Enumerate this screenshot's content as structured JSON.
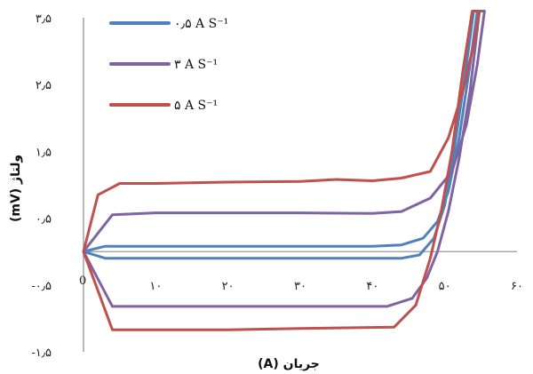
{
  "chart_data": {
    "type": "line",
    "xlabel": "جریان (A)",
    "ylabel": "ولتاژ (mV)",
    "xlim": [
      0,
      60
    ],
    "ylim": [
      -1.5,
      3.5
    ],
    "x_ticks": [
      {
        "value": 10,
        "label": "۱۰"
      },
      {
        "value": 20,
        "label": "۲۰"
      },
      {
        "value": 30,
        "label": "۳۰"
      },
      {
        "value": 40,
        "label": "۴۰"
      },
      {
        "value": 50,
        "label": "۵۰"
      },
      {
        "value": 60,
        "label": "۶۰"
      }
    ],
    "y_ticks": [
      {
        "value": -1.5,
        "label": "-۱٫۵"
      },
      {
        "value": -0.5,
        "label": "-۰٫۵"
      },
      {
        "value": 0.5,
        "label": "۰٫۵"
      },
      {
        "value": 1.5,
        "label": "۱٫۵"
      },
      {
        "value": 2.5,
        "label": "۲٫۵"
      },
      {
        "value": 3.5,
        "label": "۳٫۵"
      }
    ],
    "origin_label": "0",
    "legend_position": "top-left",
    "series": [
      {
        "name": "۰٫۵ A S⁻¹",
        "color": "#4f81bd",
        "points": [
          [
            0,
            0
          ],
          [
            3,
            0.08
          ],
          [
            10,
            0.08
          ],
          [
            20,
            0.08
          ],
          [
            30,
            0.08
          ],
          [
            40,
            0.08
          ],
          [
            44,
            0.1
          ],
          [
            47,
            0.2
          ],
          [
            49,
            0.45
          ],
          [
            50.5,
            0.9
          ],
          [
            52,
            1.7
          ],
          [
            53.5,
            2.8
          ],
          [
            54.5,
            3.6
          ],
          [
            54,
            3.6
          ],
          [
            52.5,
            2.4
          ],
          [
            51,
            1.3
          ],
          [
            50,
            0.7
          ],
          [
            48.5,
            0.2
          ],
          [
            46.5,
            -0.05
          ],
          [
            44,
            -0.1
          ],
          [
            40,
            -0.1
          ],
          [
            30,
            -0.1
          ],
          [
            20,
            -0.1
          ],
          [
            10,
            -0.1
          ],
          [
            3,
            -0.1
          ],
          [
            0,
            0
          ]
        ]
      },
      {
        "name": "۳ A S⁻¹",
        "color": "#8064a2",
        "points": [
          [
            0,
            0
          ],
          [
            4,
            0.55
          ],
          [
            10,
            0.58
          ],
          [
            20,
            0.58
          ],
          [
            30,
            0.58
          ],
          [
            40,
            0.57
          ],
          [
            44,
            0.6
          ],
          [
            48,
            0.8
          ],
          [
            51,
            1.2
          ],
          [
            53,
            1.9
          ],
          [
            54.5,
            2.8
          ],
          [
            55.5,
            3.6
          ],
          [
            54.8,
            3.6
          ],
          [
            53.5,
            2.4
          ],
          [
            52,
            1.4
          ],
          [
            50.5,
            0.6
          ],
          [
            49,
            0
          ],
          [
            47.5,
            -0.4
          ],
          [
            45.5,
            -0.7
          ],
          [
            42,
            -0.82
          ],
          [
            30,
            -0.82
          ],
          [
            20,
            -0.82
          ],
          [
            10,
            -0.82
          ],
          [
            4,
            -0.82
          ],
          [
            0,
            0
          ]
        ]
      },
      {
        "name": "۵ A S⁻¹",
        "color": "#c0504d",
        "points": [
          [
            0,
            0
          ],
          [
            2,
            0.85
          ],
          [
            5,
            1.02
          ],
          [
            10,
            1.02
          ],
          [
            20,
            1.04
          ],
          [
            30,
            1.05
          ],
          [
            35,
            1.08
          ],
          [
            40,
            1.06
          ],
          [
            44,
            1.1
          ],
          [
            48,
            1.2
          ],
          [
            50.5,
            1.7
          ],
          [
            52.5,
            2.4
          ],
          [
            54,
            3.1
          ],
          [
            54.8,
            3.6
          ],
          [
            53.8,
            3.6
          ],
          [
            52.5,
            2.7
          ],
          [
            51,
            1.5
          ],
          [
            49.5,
            0.6
          ],
          [
            48,
            -0.1
          ],
          [
            46,
            -0.8
          ],
          [
            43,
            -1.13
          ],
          [
            30,
            -1.15
          ],
          [
            20,
            -1.17
          ],
          [
            10,
            -1.17
          ],
          [
            4,
            -1.17
          ],
          [
            0,
            0
          ]
        ]
      }
    ]
  }
}
